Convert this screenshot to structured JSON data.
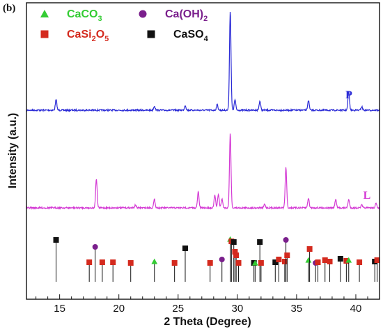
{
  "panel_label": "(b)",
  "chart_data": {
    "type": "line",
    "xlabel": "2 Theta (Degree)",
    "ylabel": "Intensity (a.u.)",
    "xlim": [
      12.2,
      42
    ],
    "xticks": [
      15,
      20,
      25,
      30,
      35,
      40
    ],
    "minor_tick_step": 1,
    "y_tick_labels": false,
    "grid": false,
    "legend_position": "top-left",
    "legend": [
      {
        "phase": "CaCO3",
        "base": "CaCO",
        "sub": "3",
        "marker": "triangle",
        "color": "#33cc33"
      },
      {
        "phase": "Ca(OH)2",
        "base": "Ca(OH)",
        "sub": "2",
        "marker": "circle",
        "color": "#7a1f8c"
      },
      {
        "phase": "CaSi2O5",
        "base": "CaSi",
        "sub": "2",
        "base2": "O",
        "sub2": "5",
        "marker": "square",
        "color": "#d42a1e"
      },
      {
        "phase": "CaSO4",
        "base": "CaSO",
        "sub": "4",
        "marker": "square",
        "color": "#111111"
      }
    ],
    "series": [
      {
        "name": "P",
        "color": "#2a2ad6",
        "label_color": "#2a2ad6",
        "peaks": [
          {
            "x": 14.7,
            "h": 15
          },
          {
            "x": 23.0,
            "h": 6
          },
          {
            "x": 25.6,
            "h": 7
          },
          {
            "x": 28.3,
            "h": 8
          },
          {
            "x": 29.4,
            "h": 143
          },
          {
            "x": 29.8,
            "h": 15
          },
          {
            "x": 31.9,
            "h": 13
          },
          {
            "x": 36.0,
            "h": 14
          },
          {
            "x": 39.4,
            "h": 27
          },
          {
            "x": 40.5,
            "h": 5
          }
        ]
      },
      {
        "name": "L",
        "color": "#d43ad4",
        "label_color": "#d43ad4",
        "peaks": [
          {
            "x": 18.1,
            "h": 42
          },
          {
            "x": 21.4,
            "h": 4
          },
          {
            "x": 23.0,
            "h": 12
          },
          {
            "x": 26.7,
            "h": 23
          },
          {
            "x": 28.1,
            "h": 18
          },
          {
            "x": 28.4,
            "h": 20
          },
          {
            "x": 28.7,
            "h": 13
          },
          {
            "x": 29.4,
            "h": 107
          },
          {
            "x": 32.3,
            "h": 5
          },
          {
            "x": 34.1,
            "h": 58
          },
          {
            "x": 36.0,
            "h": 14
          },
          {
            "x": 38.3,
            "h": 12
          },
          {
            "x": 39.4,
            "h": 12
          },
          {
            "x": 40.5,
            "h": 4
          },
          {
            "x": 41.7,
            "h": 6
          }
        ]
      }
    ],
    "reference_lines": [
      {
        "phase": "CaSO4",
        "x": 14.7,
        "h": 60
      },
      {
        "phase": "CaSi2O5",
        "x": 17.5,
        "h": 28
      },
      {
        "phase": "Ca(OH)2",
        "x": 18.0,
        "h": 50
      },
      {
        "phase": "CaSi2O5",
        "x": 18.6,
        "h": 28
      },
      {
        "phase": "CaSi2O5",
        "x": 19.5,
        "h": 28
      },
      {
        "phase": "CaSi2O5",
        "x": 21.0,
        "h": 27
      },
      {
        "phase": "CaCO3",
        "x": 23.0,
        "h": 29
      },
      {
        "phase": "CaSi2O5",
        "x": 24.7,
        "h": 27
      },
      {
        "phase": "CaSO4",
        "x": 25.6,
        "h": 48
      },
      {
        "phase": "CaSi2O5",
        "x": 27.7,
        "h": 27
      },
      {
        "phase": "Ca(OH)2",
        "x": 28.7,
        "h": 32
      },
      {
        "phase": "CaCO3",
        "x": 29.4,
        "h": 61
      },
      {
        "phase": "CaSi2O5",
        "x": 29.5,
        "h": 58
      },
      {
        "phase": "CaSO4",
        "x": 29.7,
        "h": 57
      },
      {
        "phase": "CaSi2O5",
        "x": 29.8,
        "h": 43
      },
      {
        "phase": "CaSi2O5",
        "x": 29.9,
        "h": 38
      },
      {
        "phase": "CaSi2O5",
        "x": 30.1,
        "h": 27
      },
      {
        "phase": "CaSO4",
        "x": 31.4,
        "h": 27
      },
      {
        "phase": "CaCO3",
        "x": 31.5,
        "h": 27
      },
      {
        "phase": "CaSO4",
        "x": 31.9,
        "h": 57
      },
      {
        "phase": "CaSi2O5",
        "x": 32.0,
        "h": 27
      },
      {
        "phase": "CaSO4",
        "x": 33.2,
        "h": 28
      },
      {
        "phase": "CaSi2O5",
        "x": 33.5,
        "h": 32
      },
      {
        "phase": "CaSi2O5",
        "x": 34.0,
        "h": 29
      },
      {
        "phase": "Ca(OH)2",
        "x": 34.1,
        "h": 60
      },
      {
        "phase": "CaSi2O5",
        "x": 34.2,
        "h": 38
      },
      {
        "phase": "CaCO3",
        "x": 36.0,
        "h": 31
      },
      {
        "phase": "CaSi2O5",
        "x": 36.1,
        "h": 47
      },
      {
        "phase": "Ca(OH)2",
        "x": 36.6,
        "h": 27
      },
      {
        "phase": "CaSi2O5",
        "x": 36.8,
        "h": 28
      },
      {
        "phase": "CaSi2O5",
        "x": 37.4,
        "h": 31
      },
      {
        "phase": "CaSi2O5",
        "x": 37.8,
        "h": 29
      },
      {
        "phase": "CaSO4",
        "x": 38.7,
        "h": 33
      },
      {
        "phase": "CaSi2O5",
        "x": 39.2,
        "h": 30
      },
      {
        "phase": "CaCO3",
        "x": 39.4,
        "h": 31
      },
      {
        "phase": "CaSi2O5",
        "x": 40.3,
        "h": 28
      },
      {
        "phase": "CaSO4",
        "x": 41.6,
        "h": 29
      },
      {
        "phase": "CaSi2O5",
        "x": 41.8,
        "h": 31
      }
    ]
  }
}
